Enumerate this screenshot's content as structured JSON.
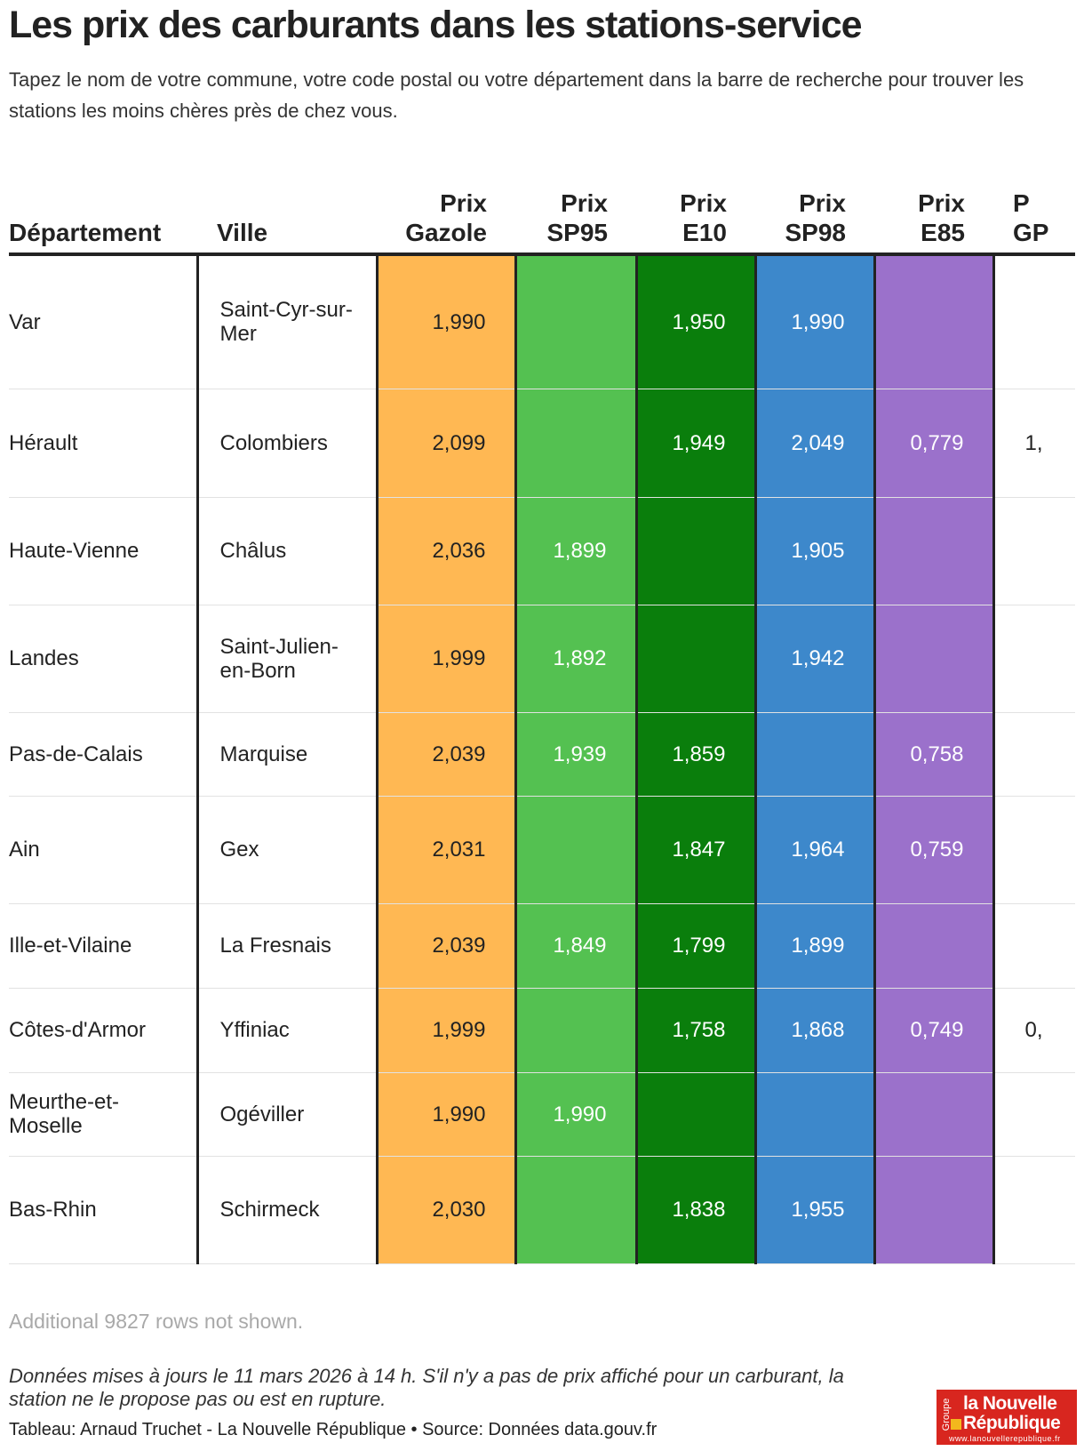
{
  "header": {
    "title": "Les prix des carburants dans les stations-service",
    "subtitle": "Tapez le nom de votre commune, votre code postal ou votre département dans la barre de recherche pour trouver les stations les moins chères près de chez vous."
  },
  "chart_data": {
    "type": "table",
    "columns": [
      "Département",
      "Ville",
      "Prix Gazole",
      "Prix SP95",
      "Prix E10",
      "Prix SP98",
      "Prix E85",
      "Prix GPL"
    ],
    "column_header_lines": [
      [
        "",
        "Département"
      ],
      [
        "",
        "Ville"
      ],
      [
        "Prix",
        "Gazole"
      ],
      [
        "Prix",
        "SP95"
      ],
      [
        "Prix",
        "E10"
      ],
      [
        "Prix",
        "SP98"
      ],
      [
        "Prix",
        "E85"
      ],
      [
        "P",
        "GP"
      ]
    ],
    "column_colors": {
      "gazole": "#ffb853",
      "sp95": "#54c151",
      "e10": "#0a7e0c",
      "sp98": "#3d88cb",
      "e85": "#9b71cb"
    },
    "rows": [
      {
        "departement": "Var",
        "ville": "Saint-Cyr-sur-Mer",
        "gazole": "1,990",
        "sp95": "",
        "e10": "1,950",
        "sp98": "1,990",
        "e85": "",
        "gpl": ""
      },
      {
        "departement": "Hérault",
        "ville": "Colombiers",
        "gazole": "2,099",
        "sp95": "",
        "e10": "1,949",
        "sp98": "2,049",
        "e85": "0,779",
        "gpl": "1,"
      },
      {
        "departement": "Haute-Vienne",
        "ville": "Châlus",
        "gazole": "2,036",
        "sp95": "1,899",
        "e10": "",
        "sp98": "1,905",
        "e85": "",
        "gpl": ""
      },
      {
        "departement": "Landes",
        "ville": "Saint-Julien-en-Born",
        "gazole": "1,999",
        "sp95": "1,892",
        "e10": "",
        "sp98": "1,942",
        "e85": "",
        "gpl": ""
      },
      {
        "departement": "Pas-de-Calais",
        "ville": "Marquise",
        "gazole": "2,039",
        "sp95": "1,939",
        "e10": "1,859",
        "sp98": "",
        "e85": "0,758",
        "gpl": ""
      },
      {
        "departement": "Ain",
        "ville": "Gex",
        "gazole": "2,031",
        "sp95": "",
        "e10": "1,847",
        "sp98": "1,964",
        "e85": "0,759",
        "gpl": ""
      },
      {
        "departement": "Ille-et-Vilaine",
        "ville": "La Fresnais",
        "gazole": "2,039",
        "sp95": "1,849",
        "e10": "1,799",
        "sp98": "1,899",
        "e85": "",
        "gpl": ""
      },
      {
        "departement": "Côtes-d'Armor",
        "ville": "Yffiniac",
        "gazole": "1,999",
        "sp95": "",
        "e10": "1,758",
        "sp98": "1,868",
        "e85": "0,749",
        "gpl": "0,"
      },
      {
        "departement": "Meurthe-et-Moselle",
        "ville": "Ogéviller",
        "gazole": "1,990",
        "sp95": "1,990",
        "e10": "",
        "sp98": "",
        "e85": "",
        "gpl": ""
      },
      {
        "departement": "Bas-Rhin",
        "ville": "Schirmeck",
        "gazole": "2,030",
        "sp95": "",
        "e10": "1,838",
        "sp98": "1,955",
        "e85": "",
        "gpl": ""
      }
    ]
  },
  "footer": {
    "more_rows": "Additional 9827 rows not shown.",
    "note": "Données mises à jours le 11 mars 2026 à 14 h. S'il n'y a pas de prix affiché pour un carburant, la station ne le propose pas ou est en rupture.",
    "credit": "Tableau: Arnaud Truchet - La Nouvelle République • Source: Données data.gouv.fr"
  },
  "logo": {
    "groupe": "Groupe",
    "line1": "la Nouvelle",
    "line2": "République",
    "url": "www.lanouvellerepublique.fr"
  }
}
